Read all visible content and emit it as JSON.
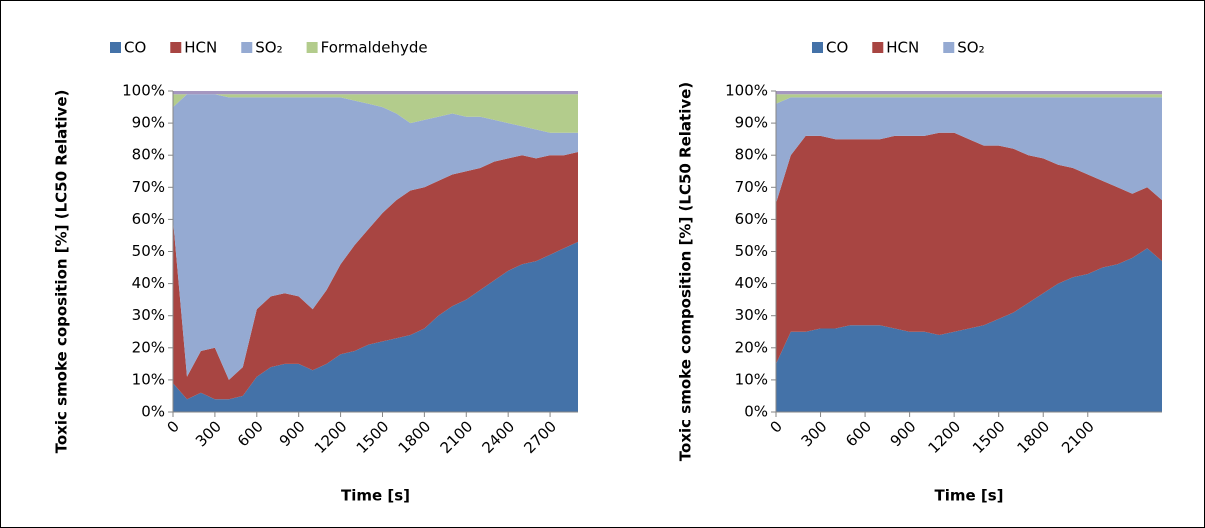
{
  "chart_data": [
    {
      "type": "stacked-area",
      "x_label": "Time [s]",
      "y_label": "Toxic smoke coposition  [%] (LC50 Relative)",
      "x": [
        0,
        100,
        200,
        300,
        400,
        500,
        600,
        700,
        800,
        900,
        1000,
        1100,
        1200,
        1300,
        1400,
        1500,
        1600,
        1700,
        1800,
        1900,
        2000,
        2100,
        2200,
        2300,
        2400,
        2500,
        2600,
        2700,
        2800,
        2900
      ],
      "series": [
        {
          "name": "CO",
          "color": "#4472a8",
          "values": [
            9,
            4,
            6,
            4,
            4,
            5,
            11,
            14,
            15,
            15,
            13,
            15,
            18,
            19,
            21,
            22,
            23,
            24,
            26,
            30,
            33,
            35,
            38,
            41,
            44,
            46,
            47,
            49,
            51,
            53
          ]
        },
        {
          "name": "HCN",
          "color": "#a84542",
          "values": [
            51,
            7,
            13,
            16,
            6,
            9,
            21,
            22,
            22,
            21,
            19,
            23,
            28,
            33,
            36,
            40,
            43,
            45,
            44,
            42,
            41,
            40,
            38,
            37,
            35,
            34,
            32,
            31,
            29,
            28
          ]
        },
        {
          "name": "SO₂",
          "color": "#95aad2",
          "values": [
            35,
            88,
            80,
            79,
            88,
            84,
            66,
            62,
            61,
            62,
            66,
            60,
            52,
            45,
            39,
            33,
            27,
            21,
            21,
            20,
            19,
            17,
            16,
            13,
            11,
            9,
            9,
            7,
            7,
            6
          ]
        },
        {
          "name": "Formaldehyde",
          "color": "#b3cc8c",
          "values": [
            4,
            0,
            0,
            0,
            1,
            1,
            1,
            1,
            1,
            1,
            1,
            1,
            1,
            2,
            3,
            4,
            6,
            9,
            8,
            7,
            6,
            7,
            7,
            8,
            9,
            10,
            11,
            12,
            12,
            12
          ]
        },
        {
          "color": "#a597c0",
          "values": [
            1,
            1,
            1,
            1,
            1,
            1,
            1,
            1,
            1,
            1,
            1,
            1,
            1,
            1,
            1,
            1,
            1,
            1,
            1,
            1,
            1,
            1,
            1,
            1,
            1,
            1,
            1,
            1,
            1,
            1
          ]
        }
      ],
      "xlim": [
        0,
        2900
      ],
      "xticks": [
        0,
        300,
        600,
        900,
        1200,
        1500,
        1800,
        2100,
        2400,
        2700
      ],
      "ylim": [
        0,
        100
      ],
      "yticks": [
        {
          "value": 0,
          "label": "0%"
        },
        {
          "value": 10,
          "label": "10%"
        },
        {
          "value": 20,
          "label": "20%"
        },
        {
          "value": 30,
          "label": "30%"
        },
        {
          "value": 40,
          "label": "40%"
        },
        {
          "value": 50,
          "label": "50%"
        },
        {
          "value": 60,
          "label": "60%"
        },
        {
          "value": 70,
          "label": "70%"
        },
        {
          "value": 80,
          "label": "80%"
        },
        {
          "value": 90,
          "label": "90%"
        },
        {
          "value": 100,
          "label": "100%"
        }
      ]
    },
    {
      "type": "stacked-area",
      "x_label": "Time [s]",
      "y_label": "Toxic smoke composition  [%] (LC50 Relative)",
      "x": [
        0,
        100,
        200,
        300,
        400,
        500,
        600,
        700,
        800,
        900,
        1000,
        1100,
        1200,
        1300,
        1400,
        1500,
        1600,
        1700,
        1800,
        1900,
        2000,
        2100,
        2200,
        2300,
        2400,
        2500,
        2600
      ],
      "series": [
        {
          "name": "CO",
          "color": "#4472a8",
          "values": [
            15,
            25,
            25,
            26,
            26,
            27,
            27,
            27,
            26,
            25,
            25,
            24,
            25,
            26,
            27,
            29,
            31,
            34,
            37,
            40,
            42,
            43,
            45,
            46,
            48,
            51,
            47
          ]
        },
        {
          "name": "HCN",
          "color": "#a84542",
          "values": [
            50,
            55,
            61,
            60,
            59,
            58,
            58,
            58,
            60,
            61,
            61,
            63,
            62,
            59,
            56,
            54,
            51,
            46,
            42,
            37,
            34,
            31,
            27,
            24,
            20,
            19,
            19
          ]
        },
        {
          "name": "SO₂",
          "color": "#95aad2",
          "values": [
            31,
            18,
            12,
            12,
            13,
            13,
            13,
            13,
            12,
            12,
            12,
            11,
            11,
            13,
            15,
            15,
            16,
            18,
            19,
            21,
            22,
            24,
            26,
            28,
            30,
            28,
            32
          ]
        },
        {
          "color": "#b3cc8c",
          "values": [
            3,
            1,
            1,
            1,
            1,
            1,
            1,
            1,
            1,
            1,
            1,
            1,
            1,
            1,
            1,
            1,
            1,
            1,
            1,
            1,
            1,
            1,
            1,
            1,
            1,
            1,
            1
          ]
        },
        {
          "color": "#a597c0",
          "values": [
            1,
            1,
            1,
            1,
            1,
            1,
            1,
            1,
            1,
            1,
            1,
            1,
            1,
            1,
            1,
            1,
            1,
            1,
            1,
            1,
            1,
            1,
            1,
            1,
            1,
            1,
            1
          ]
        }
      ],
      "xlim": [
        0,
        2600
      ],
      "xticks": [
        0,
        300,
        600,
        900,
        1200,
        1500,
        1800,
        2100
      ],
      "ylim": [
        0,
        100
      ],
      "yticks": [
        {
          "value": 0,
          "label": "0%"
        },
        {
          "value": 10,
          "label": "10%"
        },
        {
          "value": 20,
          "label": "20%"
        },
        {
          "value": 30,
          "label": "30%"
        },
        {
          "value": 40,
          "label": "40%"
        },
        {
          "value": 50,
          "label": "50%"
        },
        {
          "value": 60,
          "label": "60%"
        },
        {
          "value": 70,
          "label": "70%"
        },
        {
          "value": 80,
          "label": "80%"
        },
        {
          "value": 90,
          "label": "90%"
        },
        {
          "value": 100,
          "label": "100%"
        }
      ]
    }
  ]
}
